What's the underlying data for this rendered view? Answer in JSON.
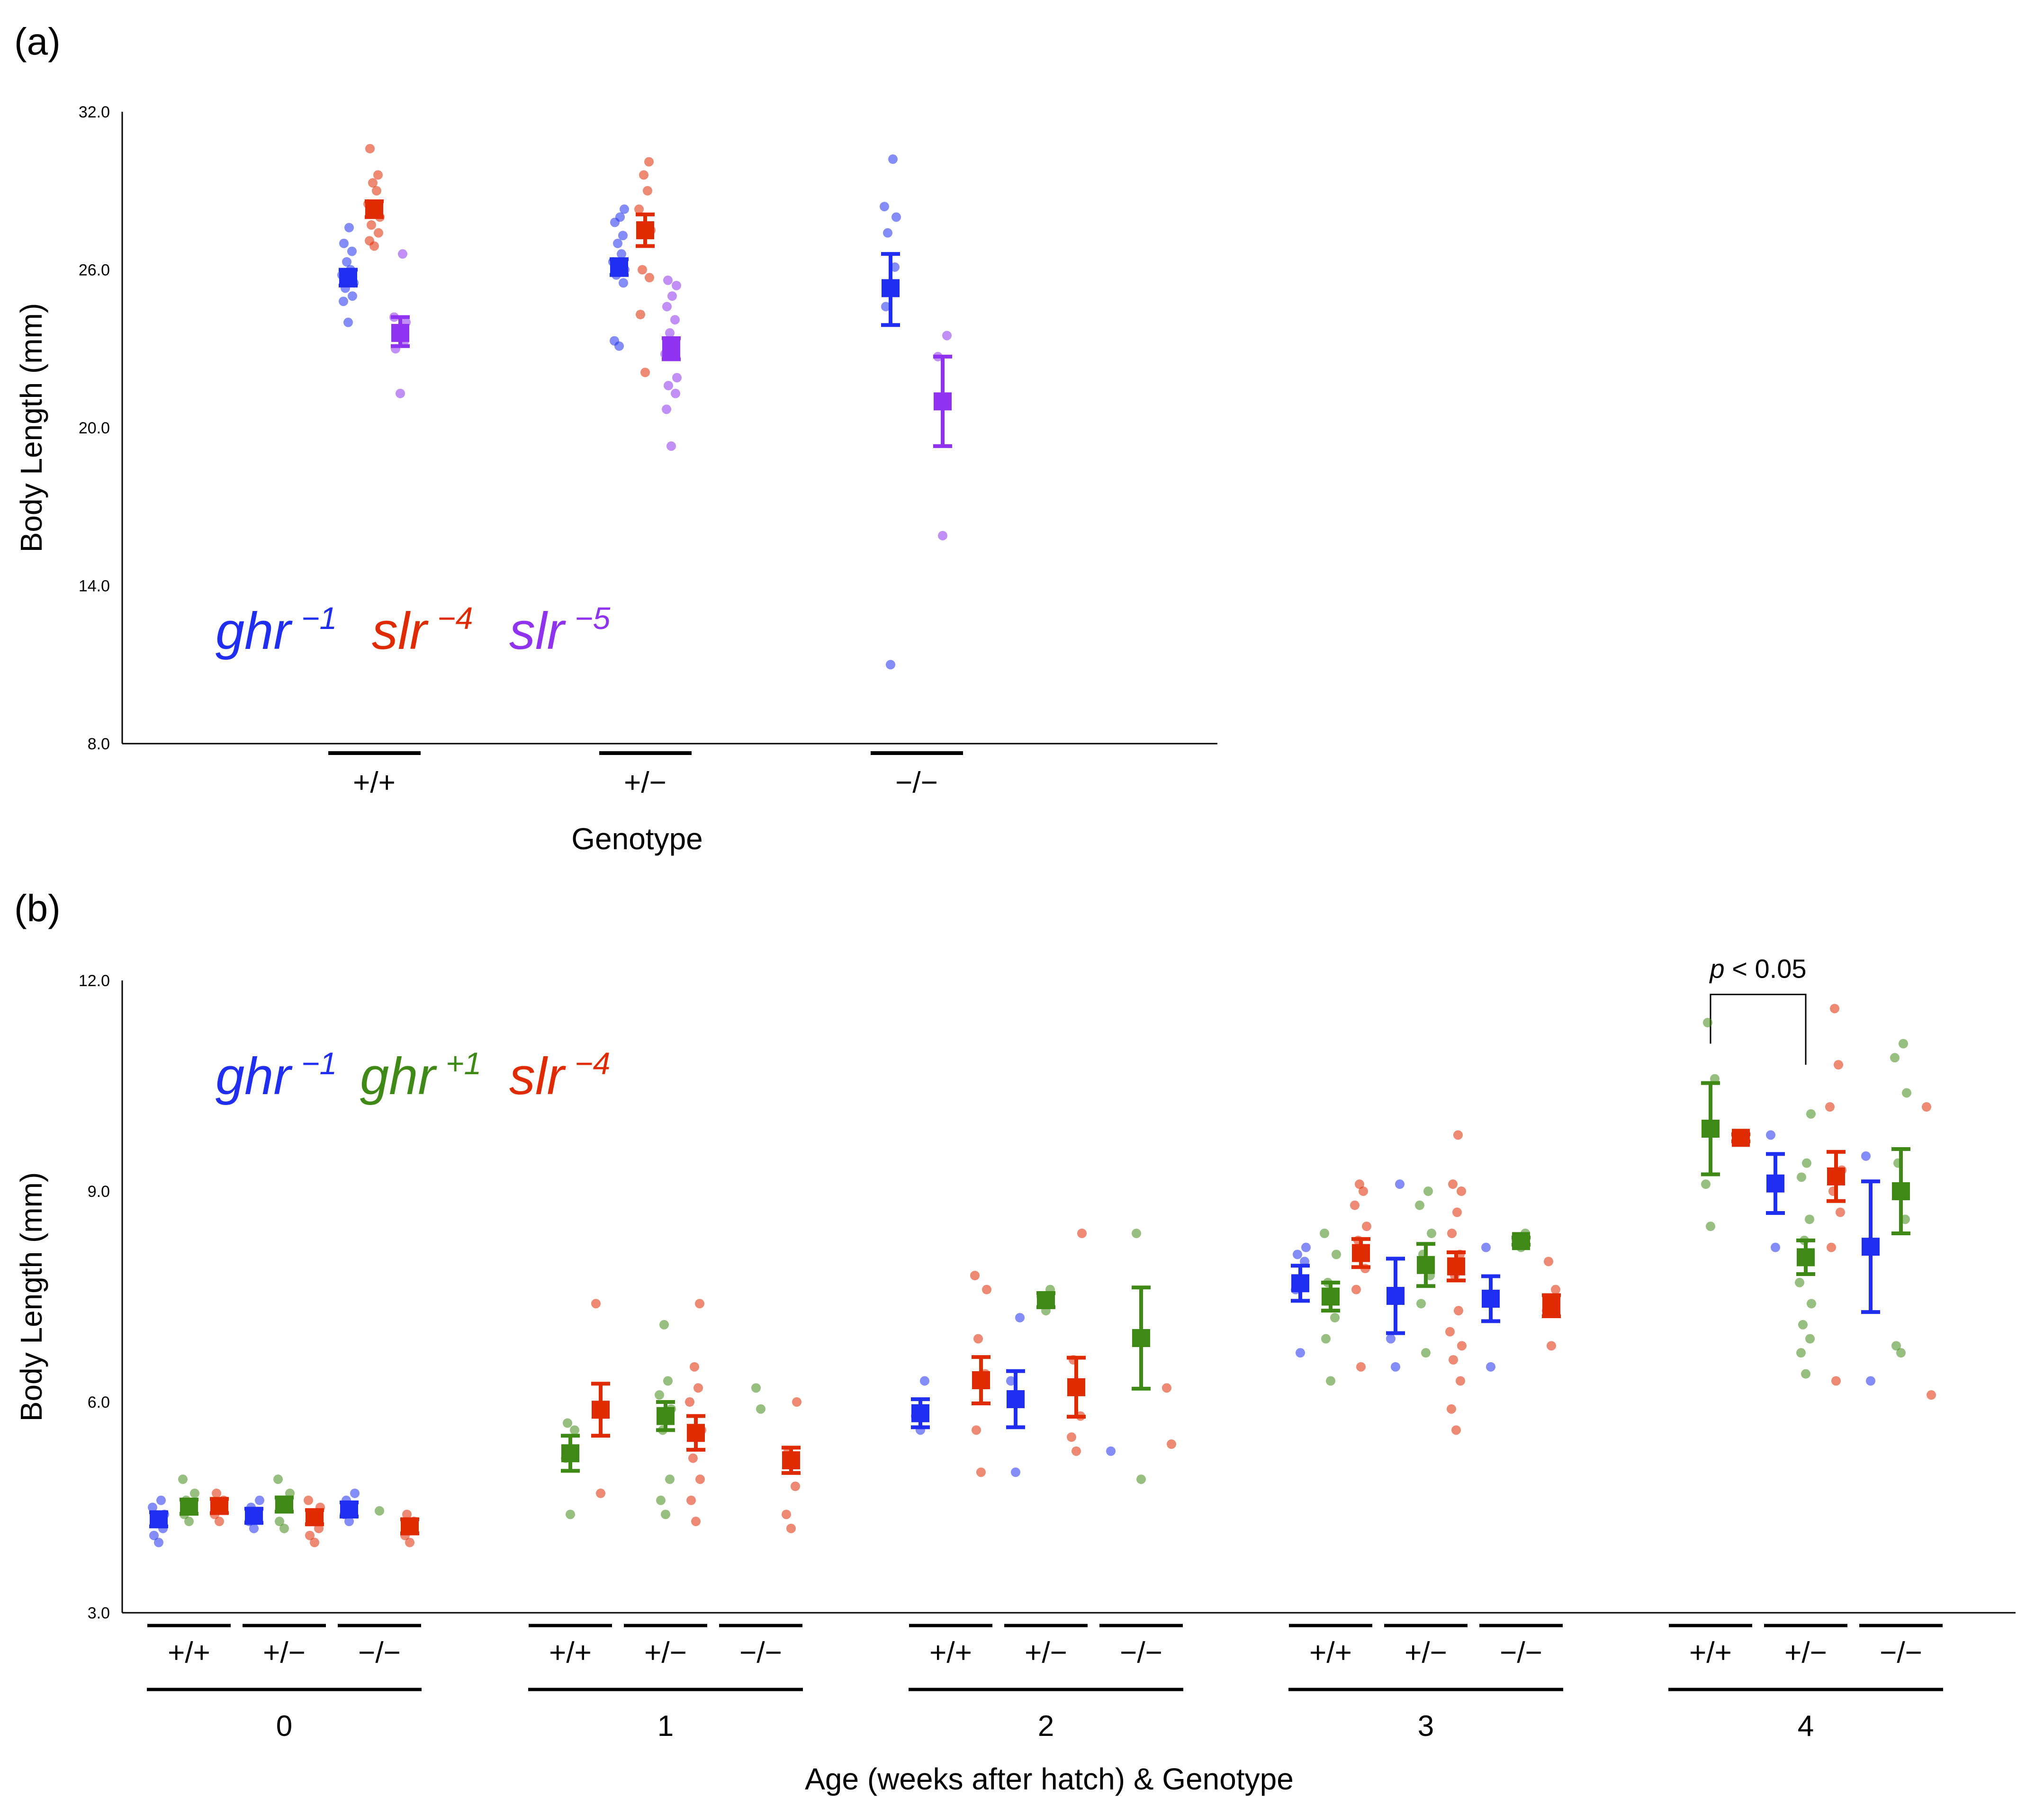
{
  "chart_data": [
    {
      "panel": "(a)",
      "type": "scatter",
      "ylabel": "Body Length (mm)",
      "xlabel": "Genotype",
      "ylim": [
        8.0,
        32.0
      ],
      "yticks": [
        "8.0",
        "14.0",
        "20.0",
        "26.0",
        "32.0"
      ],
      "categories": [
        "+/+",
        "+/−",
        "−/−"
      ],
      "legend": [
        {
          "base": "ghr",
          "sup": "−1",
          "color": "#1f2ef0"
        },
        {
          "base": "slr",
          "sup": "−4",
          "color": "#e02a00"
        },
        {
          "base": "slr",
          "sup": "−5",
          "color": "#8f33f0"
        }
      ],
      "series": [
        {
          "name": "ghr −1",
          "color": "#1f2ef0",
          "groups": [
            {
              "category": "+/+",
              "mean": 25.7,
              "err_low": 25.4,
              "err_high": 26.0,
              "points": [
                24.0,
                24.8,
                25.0,
                25.3,
                25.5,
                25.8,
                26.0,
                26.3,
                26.7,
                27.0,
                27.6
              ]
            },
            {
              "category": "+/−",
              "mean": 26.1,
              "err_low": 25.8,
              "err_high": 26.4,
              "points": [
                23.1,
                23.3,
                25.5,
                25.8,
                26.0,
                26.3,
                26.6,
                27.0,
                27.3,
                27.8,
                28.0,
                28.3
              ]
            },
            {
              "category": "−/−",
              "mean": 25.3,
              "err_low": 23.9,
              "err_high": 26.6,
              "points": [
                11.0,
                24.6,
                26.1,
                27.4,
                28.0,
                28.4,
                30.2
              ]
            }
          ]
        },
        {
          "name": "slr −4",
          "color": "#e02a00",
          "groups": [
            {
              "category": "+/+",
              "mean": 28.3,
              "err_low": 28.0,
              "err_high": 28.6,
              "points": [
                26.9,
                27.1,
                27.4,
                27.7,
                28.0,
                28.5,
                29.0,
                29.3,
                29.6,
                30.6
              ]
            },
            {
              "category": "+/−",
              "mean": 27.5,
              "err_low": 26.9,
              "err_high": 28.1,
              "points": [
                22.1,
                24.3,
                25.7,
                26.0,
                27.5,
                28.3,
                29.0,
                29.6,
                30.1
              ]
            }
          ]
        },
        {
          "name": "slr −5",
          "color": "#8f33f0",
          "groups": [
            {
              "category": "+/+",
              "mean": 23.6,
              "err_low": 23.1,
              "err_high": 24.2,
              "points": [
                21.3,
                23.0,
                23.3,
                23.6,
                24.0,
                24.2,
                26.6
              ]
            },
            {
              "category": "+/−",
              "mean": 23.0,
              "err_low": 22.6,
              "err_high": 23.4,
              "points": [
                19.3,
                20.7,
                21.3,
                21.6,
                21.9,
                22.8,
                23.2,
                23.6,
                24.1,
                24.6,
                25.0,
                25.4,
                25.6
              ]
            },
            {
              "category": "−/−",
              "mean": 21.0,
              "err_low": 19.3,
              "err_high": 22.7,
              "points": [
                15.9,
                22.7,
                23.5
              ]
            }
          ]
        }
      ]
    },
    {
      "panel": "(b)",
      "type": "scatter",
      "ylabel": "Body Length (mm)",
      "xlabel": "Age (weeks after hatch) & Genotype",
      "ylim": [
        3.0,
        12.0
      ],
      "yticks": [
        "3.0",
        "6.0",
        "9.0",
        "12.0"
      ],
      "ages": [
        "0",
        "1",
        "2",
        "3",
        "4"
      ],
      "genotypes": [
        "+/+",
        "+/−",
        "−/−"
      ],
      "legend": [
        {
          "base": "ghr",
          "sup": "−1",
          "color": "#1f2ef0"
        },
        {
          "base": "ghr",
          "sup": "+1",
          "color": "#3f8a17"
        },
        {
          "base": "slr",
          "sup": "−4",
          "color": "#e02a00"
        }
      ],
      "annotation": {
        "text": "p < 0.05",
        "italic_part": "p",
        "rest": " < 0.05",
        "from": {
          "age": "4",
          "genotype": "+/+",
          "series": "ghr +1"
        },
        "to": {
          "age": "4",
          "genotype": "+/−",
          "series": "ghr +1"
        }
      },
      "series": [
        {
          "name": "ghr −1",
          "color": "#1f2ef0",
          "groups": [
            {
              "age": "0",
              "genotype": "+/+",
              "mean": 4.33,
              "err_low": 4.23,
              "err_high": 4.43,
              "points": [
                4.0,
                4.1,
                4.2,
                4.3,
                4.4,
                4.5,
                4.6
              ]
            },
            {
              "age": "0",
              "genotype": "+/−",
              "mean": 4.38,
              "err_low": 4.28,
              "err_high": 4.48,
              "points": [
                4.2,
                4.3,
                4.4,
                4.5,
                4.6
              ]
            },
            {
              "age": "0",
              "genotype": "−/−",
              "mean": 4.47,
              "err_low": 4.37,
              "err_high": 4.57,
              "points": [
                4.3,
                4.4,
                4.5,
                4.6,
                4.7
              ]
            },
            {
              "age": "2",
              "genotype": "+/+",
              "mean": 5.84,
              "err_low": 5.64,
              "err_high": 6.04,
              "points": [
                5.6,
                5.8,
                6.3
              ]
            },
            {
              "age": "2",
              "genotype": "+/−",
              "mean": 6.04,
              "err_low": 5.64,
              "err_high": 6.44,
              "points": [
                5.0,
                6.3,
                7.2
              ]
            },
            {
              "age": "2",
              "genotype": "−/−",
              "points": [
                5.3
              ]
            },
            {
              "age": "3",
              "genotype": "+/+",
              "mean": 7.69,
              "err_low": 7.44,
              "err_high": 7.94,
              "points": [
                6.7,
                7.6,
                8.0,
                8.1,
                8.2
              ]
            },
            {
              "age": "3",
              "genotype": "+/−",
              "mean": 7.51,
              "err_low": 6.98,
              "err_high": 8.04,
              "points": [
                6.5,
                6.9,
                9.1
              ]
            },
            {
              "age": "3",
              "genotype": "−/−",
              "mean": 7.47,
              "err_low": 7.15,
              "err_high": 7.79,
              "points": [
                6.5,
                8.2
              ]
            },
            {
              "age": "4",
              "genotype": "+/−",
              "mean": 9.11,
              "err_low": 8.69,
              "err_high": 9.53,
              "points": [
                8.2,
                9.8
              ]
            },
            {
              "age": "4",
              "genotype": "−/−",
              "mean": 8.21,
              "err_low": 7.28,
              "err_high": 9.14,
              "points": [
                6.3,
                9.5
              ]
            }
          ]
        },
        {
          "name": "ghr +1",
          "color": "#3f8a17",
          "groups": [
            {
              "age": "0",
              "genotype": "+/+",
              "mean": 4.51,
              "err_low": 4.41,
              "err_high": 4.61,
              "points": [
                4.3,
                4.4,
                4.5,
                4.6,
                4.7,
                4.9
              ]
            },
            {
              "age": "0",
              "genotype": "+/−",
              "mean": 4.54,
              "err_low": 4.44,
              "err_high": 4.64,
              "points": [
                4.2,
                4.3,
                4.5,
                4.6,
                4.7,
                4.9
              ]
            },
            {
              "age": "0",
              "genotype": "−/−",
              "points": [
                4.45
              ]
            },
            {
              "age": "1",
              "genotype": "+/+",
              "mean": 5.27,
              "err_low": 5.02,
              "err_high": 5.52,
              "points": [
                4.4,
                5.2,
                5.6,
                5.7
              ]
            },
            {
              "age": "1",
              "genotype": "+/−",
              "mean": 5.8,
              "err_low": 5.6,
              "err_high": 6.0,
              "points": [
                4.4,
                4.6,
                4.9,
                5.6,
                5.9,
                6.1,
                6.3,
                7.1
              ]
            },
            {
              "age": "1",
              "genotype": "−/−",
              "points": [
                5.9,
                6.2
              ]
            },
            {
              "age": "2",
              "genotype": "+/−",
              "mean": 7.45,
              "err_low": 7.35,
              "err_high": 7.55,
              "points": [
                7.3,
                7.5,
                7.6
              ]
            },
            {
              "age": "2",
              "genotype": "−/−",
              "mean": 6.91,
              "err_low": 6.19,
              "err_high": 7.63,
              "points": [
                4.9,
                8.4
              ]
            },
            {
              "age": "3",
              "genotype": "+/+",
              "mean": 7.5,
              "err_low": 7.3,
              "err_high": 7.7,
              "points": [
                6.3,
                6.9,
                7.2,
                7.7,
                8.1,
                8.4
              ]
            },
            {
              "age": "3",
              "genotype": "+/−",
              "mean": 7.95,
              "err_low": 7.65,
              "err_high": 8.25,
              "points": [
                6.7,
                7.4,
                7.8,
                8.1,
                8.4,
                8.8,
                9.0
              ]
            },
            {
              "age": "3",
              "genotype": "−/−",
              "mean": 8.29,
              "err_low": 8.24,
              "err_high": 8.34,
              "points": [
                8.2,
                8.3,
                8.4
              ]
            },
            {
              "age": "4",
              "genotype": "+/+",
              "mean": 9.89,
              "err_low": 9.24,
              "err_high": 10.54,
              "points": [
                8.5,
                9.1,
                10.6,
                11.4
              ]
            },
            {
              "age": "4",
              "genotype": "+/−",
              "mean": 8.06,
              "err_low": 7.82,
              "err_high": 8.3,
              "points": [
                6.4,
                6.7,
                6.9,
                7.1,
                7.4,
                7.7,
                8.0,
                8.3,
                8.6,
                9.2,
                9.4,
                10.1
              ]
            },
            {
              "age": "4",
              "genotype": "−/−",
              "mean": 9.0,
              "err_low": 8.4,
              "err_high": 9.6,
              "points": [
                6.7,
                6.8,
                8.6,
                9.4,
                10.4,
                10.9,
                11.1
              ]
            }
          ]
        },
        {
          "name": "slr −4",
          "color": "#e02a00",
          "groups": [
            {
              "age": "0",
              "genotype": "+/+",
              "mean": 4.52,
              "err_low": 4.42,
              "err_high": 4.62,
              "points": [
                4.3,
                4.4,
                4.6,
                4.7
              ]
            },
            {
              "age": "0",
              "genotype": "+/−",
              "mean": 4.36,
              "err_low": 4.26,
              "err_high": 4.46,
              "points": [
                4.0,
                4.1,
                4.2,
                4.4,
                4.5,
                4.6
              ]
            },
            {
              "age": "0",
              "genotype": "−/−",
              "mean": 4.23,
              "err_low": 4.13,
              "err_high": 4.33,
              "points": [
                4.0,
                4.1,
                4.3,
                4.4
              ]
            },
            {
              "age": "1",
              "genotype": "+/+",
              "mean": 5.89,
              "err_low": 5.52,
              "err_high": 6.26,
              "points": [
                4.7,
                7.4
              ]
            },
            {
              "age": "1",
              "genotype": "+/−",
              "mean": 5.56,
              "err_low": 5.32,
              "err_high": 5.8,
              "points": [
                4.3,
                4.6,
                4.9,
                5.2,
                5.6,
                6.0,
                6.2,
                6.5,
                7.4
              ]
            },
            {
              "age": "1",
              "genotype": "−/−",
              "mean": 5.17,
              "err_low": 4.99,
              "err_high": 5.35,
              "points": [
                4.2,
                4.4,
                4.8,
                5.3,
                6.0
              ]
            },
            {
              "age": "2",
              "genotype": "+/+",
              "mean": 6.31,
              "err_low": 5.98,
              "err_high": 6.64,
              "points": [
                5.0,
                5.6,
                6.4,
                6.9,
                7.6,
                7.8
              ]
            },
            {
              "age": "2",
              "genotype": "+/−",
              "mean": 6.21,
              "err_low": 5.79,
              "err_high": 6.63,
              "points": [
                5.3,
                5.5,
                5.8,
                6.6,
                8.4
              ]
            },
            {
              "age": "2",
              "genotype": "−/−",
              "points": [
                5.4,
                6.2
              ]
            },
            {
              "age": "3",
              "genotype": "+/+",
              "mean": 8.12,
              "err_low": 7.92,
              "err_high": 8.32,
              "points": [
                6.5,
                7.6,
                7.9,
                8.3,
                8.5,
                8.8,
                9.0,
                9.1
              ]
            },
            {
              "age": "3",
              "genotype": "+/−",
              "mean": 7.93,
              "err_low": 7.73,
              "err_high": 8.13,
              "points": [
                5.6,
                5.9,
                6.3,
                6.6,
                6.8,
                7.0,
                7.3,
                7.8,
                8.1,
                8.4,
                8.7,
                9.0,
                9.1,
                9.8
              ]
            },
            {
              "age": "3",
              "genotype": "−/−",
              "mean": 7.37,
              "err_low": 7.22,
              "err_high": 7.52,
              "points": [
                6.8,
                7.3,
                7.6,
                8.0
              ]
            },
            {
              "age": "4",
              "genotype": "+/+",
              "mean": 9.76,
              "err_low": 9.71,
              "err_high": 9.81,
              "points": [
                9.7,
                9.8
              ]
            },
            {
              "age": "4",
              "genotype": "+/−",
              "mean": 9.21,
              "err_low": 8.86,
              "err_high": 9.56,
              "points": [
                6.3,
                8.2,
                8.7,
                9.0,
                9.3,
                10.2,
                10.8,
                11.6
              ]
            },
            {
              "age": "4",
              "genotype": "−/−",
              "points": [
                6.1,
                10.2
              ]
            }
          ]
        }
      ]
    }
  ]
}
